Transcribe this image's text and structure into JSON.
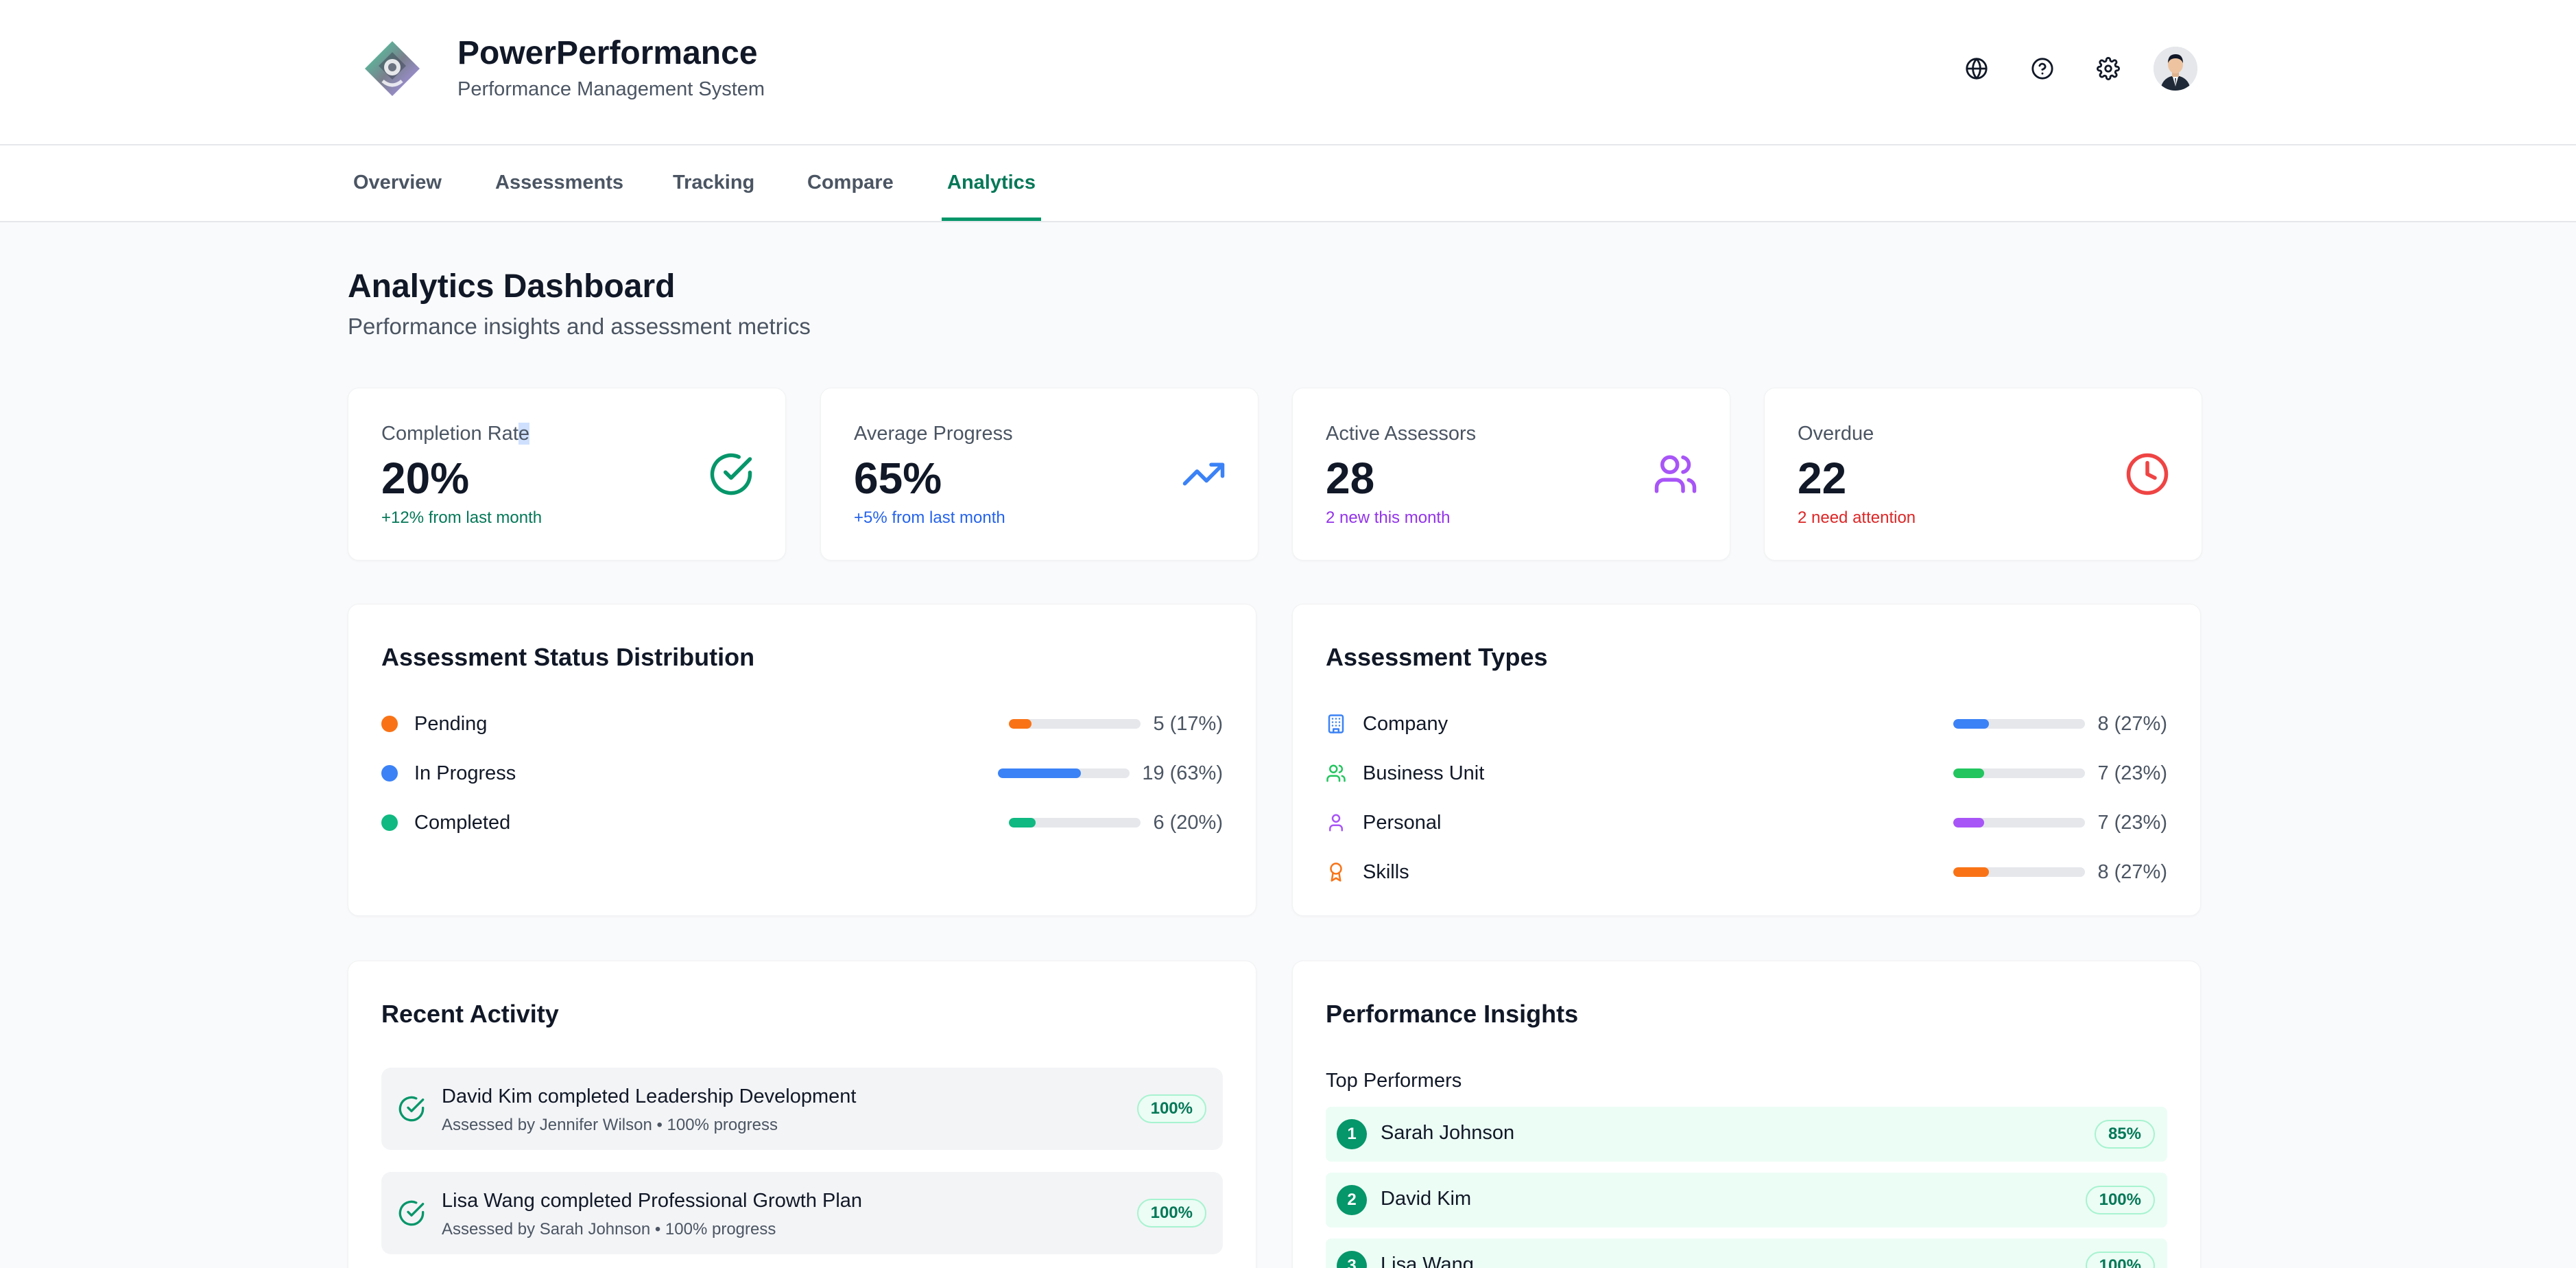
{
  "app": {
    "title": "PowerPerformance",
    "subtitle": "Performance Management System"
  },
  "header_icons": [
    "globe-icon",
    "help-icon",
    "settings-icon"
  ],
  "tabs": [
    {
      "label": "Overview",
      "active": false
    },
    {
      "label": "Assessments",
      "active": false
    },
    {
      "label": "Tracking",
      "active": false
    },
    {
      "label": "Compare",
      "active": false
    },
    {
      "label": "Analytics",
      "active": true
    }
  ],
  "page": {
    "title": "Analytics Dashboard",
    "subtitle": "Performance insights and assessment metrics"
  },
  "stats": [
    {
      "label_main": "Completion Rat",
      "label_selected": "e",
      "value": "20%",
      "trend": "+12% from last month",
      "trend_color": "#047857",
      "icon": "check-circle-icon",
      "icon_color": "#059669"
    },
    {
      "label": "Average Progress",
      "value": "65%",
      "trend": "+5% from last month",
      "trend_color": "#2563eb",
      "icon": "trending-up-icon",
      "icon_color": "#3b82f6"
    },
    {
      "label": "Active Assessors",
      "value": "28",
      "trend": "2 new this month",
      "trend_color": "#9333ea",
      "icon": "users-icon",
      "icon_color": "#a855f7"
    },
    {
      "label": "Overdue",
      "value": "22",
      "trend": "2 need attention",
      "trend_color": "#dc2626",
      "icon": "clock-icon",
      "icon_color": "#ef4444"
    }
  ],
  "status_distribution": {
    "title": "Assessment Status Distribution",
    "items": [
      {
        "label": "Pending",
        "value": "5 (17%)",
        "percent": 17,
        "color": "#f97316"
      },
      {
        "label": "In Progress",
        "value": "19 (63%)",
        "percent": 63,
        "color": "#3b82f6"
      },
      {
        "label": "Completed",
        "value": "6 (20%)",
        "percent": 20,
        "color": "#10b981"
      }
    ]
  },
  "assessment_types": {
    "title": "Assessment Types",
    "items": [
      {
        "label": "Company",
        "value": "8 (27%)",
        "percent": 27,
        "color": "#3b82f6",
        "icon": "building-icon"
      },
      {
        "label": "Business Unit",
        "value": "7 (23%)",
        "percent": 23,
        "color": "#22c55e",
        "icon": "users-icon"
      },
      {
        "label": "Personal",
        "value": "7 (23%)",
        "percent": 23,
        "color": "#a855f7",
        "icon": "user-icon"
      },
      {
        "label": "Skills",
        "value": "8 (27%)",
        "percent": 27,
        "color": "#f97316",
        "icon": "award-icon"
      }
    ]
  },
  "recent_activity": {
    "title": "Recent Activity",
    "items": [
      {
        "title": "David Kim completed Leadership Development",
        "subtitle": "Assessed by Jennifer Wilson • 100% progress",
        "badge": "100%"
      },
      {
        "title": "Lisa Wang completed Professional Growth Plan",
        "subtitle": "Assessed by Sarah Johnson • 100% progress",
        "badge": "100%"
      }
    ]
  },
  "insights": {
    "title": "Performance Insights",
    "top_performers_label": "Top Performers",
    "top_performers": [
      {
        "rank": "1",
        "name": "Sarah Johnson",
        "badge": "85%"
      },
      {
        "rank": "2",
        "name": "David Kim",
        "badge": "100%"
      },
      {
        "rank": "3",
        "name": "Lisa Wang",
        "badge": "100%"
      }
    ]
  },
  "colors": {
    "accent": "#059669",
    "accent_text": "#047857"
  }
}
